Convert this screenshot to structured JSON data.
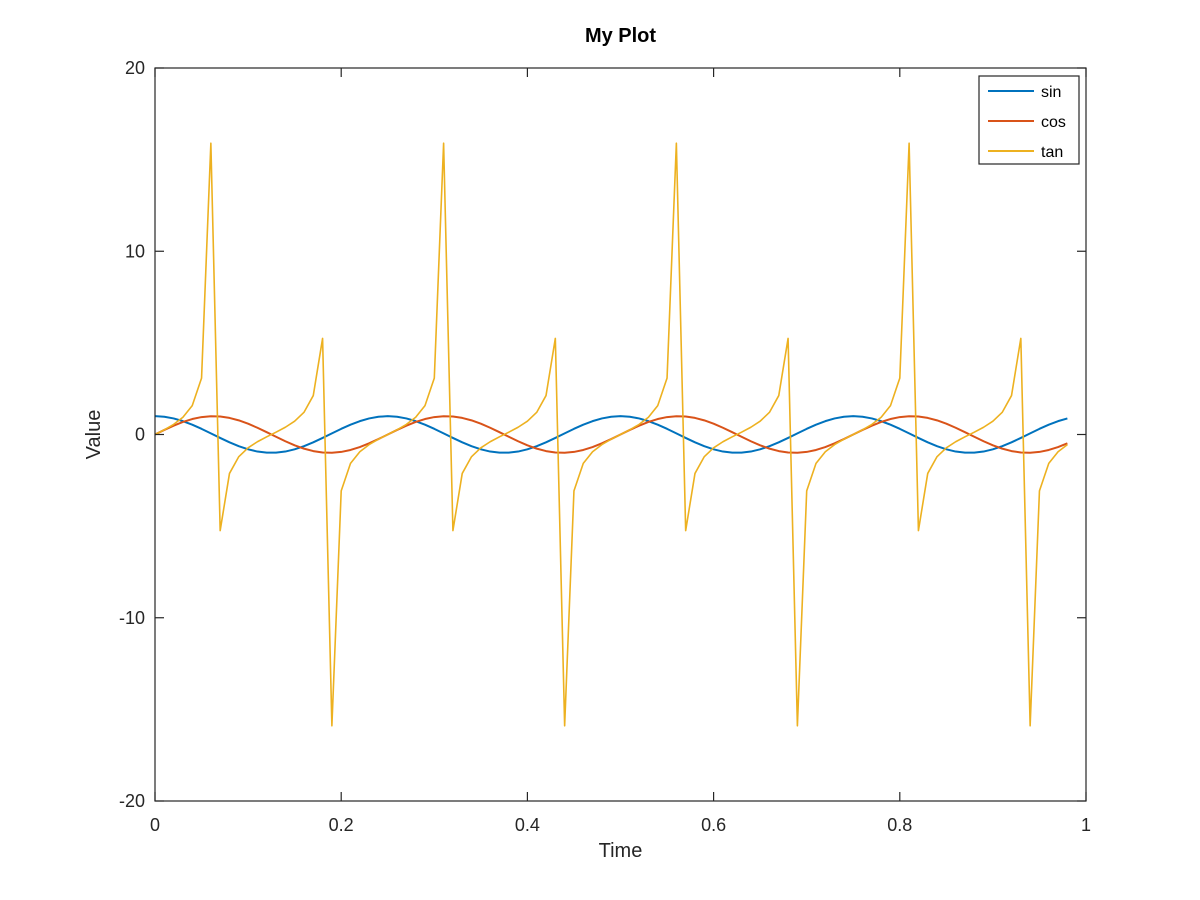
{
  "chart_data": {
    "type": "line",
    "title": "My Plot",
    "xlabel": "Time",
    "ylabel": "Value",
    "xlim": [
      0,
      1
    ],
    "ylim": [
      -20,
      20
    ],
    "x_ticks": [
      0,
      0.2,
      0.4,
      0.6,
      0.8,
      1
    ],
    "y_ticks": [
      -20,
      -10,
      0,
      10,
      20
    ],
    "x_tick_labels": [
      "0",
      "0.2",
      "0.4",
      "0.6",
      "0.8",
      "1"
    ],
    "y_tick_labels": [
      "-20",
      "-10",
      "0",
      "10",
      "20"
    ],
    "grid": false,
    "legend_position": "top-right",
    "x": [
      0,
      0.01,
      0.02,
      0.03,
      0.04,
      0.05,
      0.06,
      0.07,
      0.08,
      0.09,
      0.1,
      0.11,
      0.12,
      0.13,
      0.14,
      0.15,
      0.16,
      0.17,
      0.18,
      0.19,
      0.2,
      0.21,
      0.22,
      0.23,
      0.24,
      0.25,
      0.26,
      0.27,
      0.28,
      0.29,
      0.3,
      0.31,
      0.32,
      0.33,
      0.34,
      0.35,
      0.36,
      0.37,
      0.38,
      0.39,
      0.4,
      0.41,
      0.42,
      0.43,
      0.44,
      0.45,
      0.46,
      0.47,
      0.48,
      0.49,
      0.5,
      0.51,
      0.52,
      0.53,
      0.54,
      0.55,
      0.56,
      0.57,
      0.58,
      0.59,
      0.6,
      0.61,
      0.62,
      0.63,
      0.64,
      0.65,
      0.66,
      0.67,
      0.68,
      0.69,
      0.7,
      0.71,
      0.72,
      0.73,
      0.74,
      0.75,
      0.76,
      0.77,
      0.78,
      0.79,
      0.8,
      0.81,
      0.82,
      0.83,
      0.84,
      0.85,
      0.86,
      0.87,
      0.88,
      0.89,
      0.9,
      0.91,
      0.92,
      0.93,
      0.94,
      0.95,
      0.96,
      0.97,
      0.98
    ],
    "series": [
      {
        "name": "sin",
        "color": "#0072bd",
        "values": [
          1,
          0.969,
          0.876,
          0.729,
          0.536,
          0.309,
          0.063,
          -0.187,
          -0.426,
          -0.637,
          -0.809,
          -0.93,
          -0.992,
          -0.992,
          -0.93,
          -0.809,
          -0.637,
          -0.426,
          -0.187,
          0.063,
          0.309,
          0.536,
          0.729,
          0.876,
          0.969,
          1,
          0.969,
          0.876,
          0.729,
          0.536,
          0.309,
          0.063,
          -0.187,
          -0.426,
          -0.637,
          -0.809,
          -0.93,
          -0.992,
          -0.992,
          -0.93,
          -0.809,
          -0.637,
          -0.426,
          -0.187,
          0.063,
          0.309,
          0.536,
          0.729,
          0.876,
          0.969,
          1,
          0.969,
          0.876,
          0.729,
          0.536,
          0.309,
          0.063,
          -0.187,
          -0.426,
          -0.637,
          -0.809,
          -0.93,
          -0.992,
          -0.992,
          -0.93,
          -0.809,
          -0.637,
          -0.426,
          -0.187,
          0.063,
          0.309,
          0.536,
          0.729,
          0.876,
          0.969,
          1,
          0.969,
          0.876,
          0.729,
          0.536,
          0.309,
          0.063,
          -0.187,
          -0.426,
          -0.637,
          -0.809,
          -0.93,
          -0.992,
          -0.992,
          -0.93,
          -0.809,
          -0.637,
          -0.426,
          -0.187,
          0.063,
          0.309,
          0.536,
          0.729,
          0.876
        ]
      },
      {
        "name": "cos",
        "color": "#d95319",
        "values": [
          0,
          0.249,
          0.482,
          0.685,
          0.844,
          0.951,
          0.998,
          0.982,
          0.905,
          0.771,
          0.588,
          0.368,
          0.125,
          -0.125,
          -0.368,
          -0.588,
          -0.771,
          -0.905,
          -0.982,
          -0.998,
          -0.951,
          -0.844,
          -0.685,
          -0.482,
          -0.249,
          0,
          0.249,
          0.482,
          0.685,
          0.844,
          0.951,
          0.998,
          0.982,
          0.905,
          0.771,
          0.588,
          0.368,
          0.125,
          -0.125,
          -0.368,
          -0.588,
          -0.771,
          -0.905,
          -0.982,
          -0.998,
          -0.951,
          -0.844,
          -0.685,
          -0.482,
          -0.249,
          0,
          0.249,
          0.482,
          0.685,
          0.844,
          0.951,
          0.998,
          0.982,
          0.905,
          0.771,
          0.588,
          0.368,
          0.125,
          -0.125,
          -0.368,
          -0.588,
          -0.771,
          -0.905,
          -0.982,
          -0.998,
          -0.951,
          -0.844,
          -0.685,
          -0.482,
          -0.249,
          0,
          0.249,
          0.482,
          0.685,
          0.844,
          0.951,
          0.998,
          0.982,
          0.905,
          0.771,
          0.588,
          0.368,
          0.125,
          -0.125,
          -0.368,
          -0.588,
          -0.771,
          -0.905,
          -0.982,
          -0.998,
          -0.951,
          -0.844,
          -0.685,
          -0.482
        ]
      },
      {
        "name": "tan",
        "color": "#edb120",
        "values": [
          0,
          0.257,
          0.55,
          0.939,
          1.576,
          3.078,
          15.895,
          -5.242,
          -2.125,
          -1.209,
          -0.727,
          -0.396,
          -0.126,
          0.126,
          0.396,
          0.727,
          1.209,
          2.125,
          5.242,
          -15.895,
          -3.078,
          -1.576,
          -0.939,
          -0.55,
          -0.257,
          0,
          0.257,
          0.55,
          0.939,
          1.576,
          3.078,
          15.895,
          -5.242,
          -2.125,
          -1.209,
          -0.727,
          -0.396,
          -0.126,
          0.126,
          0.396,
          0.727,
          1.209,
          2.125,
          5.242,
          -15.895,
          -3.078,
          -1.576,
          -0.939,
          -0.55,
          -0.257,
          0,
          0.257,
          0.55,
          0.939,
          1.576,
          3.078,
          15.895,
          -5.242,
          -2.125,
          -1.209,
          -0.727,
          -0.396,
          -0.126,
          0.126,
          0.396,
          0.727,
          1.209,
          2.125,
          5.242,
          -15.895,
          -3.078,
          -1.576,
          -0.939,
          -0.55,
          -0.257,
          0,
          0.257,
          0.55,
          0.939,
          1.576,
          3.078,
          15.895,
          -5.242,
          -2.125,
          -1.209,
          -0.727,
          -0.396,
          -0.126,
          0.126,
          0.396,
          0.727,
          1.209,
          2.125,
          5.242,
          -15.895,
          -3.078,
          -1.576,
          -0.939,
          -0.55
        ]
      }
    ]
  }
}
